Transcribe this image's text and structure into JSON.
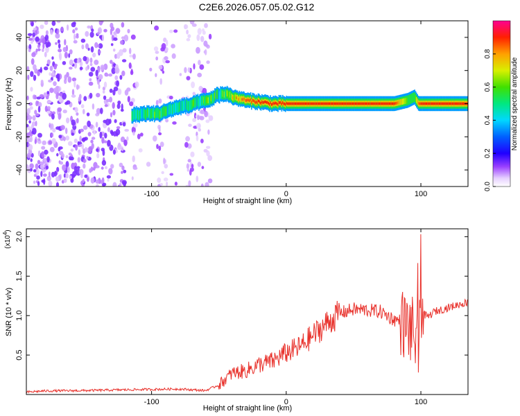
{
  "title": "C2E6.2026.057.05.02.G12",
  "colors": {
    "snr_line": "#e8302a",
    "axis": "#000000",
    "colormap": [
      "#ffffff",
      "#e0c8ff",
      "#7a00ff",
      "#0000ff",
      "#00c8ff",
      "#00e080",
      "#30e000",
      "#ffff00",
      "#ff8000",
      "#ff0000",
      "#ff0080"
    ]
  },
  "chart_data": [
    {
      "type": "heatmap",
      "xlabel": "Height of straight line (km)",
      "ylabel": "Frequency (Hz)",
      "xlim": [
        -193,
        135
      ],
      "ylim": [
        -50,
        50
      ],
      "xticks": [
        -100,
        0,
        100
      ],
      "yticks": [
        -40,
        -20,
        0,
        20,
        40
      ],
      "colorbar": {
        "label": "Normalized spectral amplitude",
        "range": [
          0,
          1
        ],
        "ticks": [
          "0.0",
          "0.2",
          "0.4",
          "0.6",
          "0.8"
        ]
      },
      "ridge": {
        "x": [
          -115,
          -105,
          -95,
          -88,
          -80,
          -72,
          -65,
          -58,
          -52,
          -45,
          -40,
          -35,
          -30,
          -20,
          -10,
          0,
          10,
          20,
          40,
          60,
          80,
          90,
          95,
          98,
          100,
          110,
          135
        ],
        "frequency": [
          -7,
          -6,
          -6,
          -4,
          -2,
          -1,
          1,
          2,
          5,
          6,
          4,
          3,
          2,
          1,
          0,
          0,
          0,
          0,
          0,
          0,
          0,
          2,
          4,
          0,
          0,
          0,
          0
        ],
        "amplitude": [
          0.45,
          0.5,
          0.55,
          0.5,
          0.45,
          0.5,
          0.5,
          0.55,
          0.5,
          0.55,
          0.7,
          0.8,
          0.85,
          0.9,
          0.9,
          0.9,
          0.9,
          0.9,
          0.9,
          0.9,
          0.9,
          0.6,
          0.55,
          0.85,
          0.9,
          0.9,
          0.9
        ]
      }
    },
    {
      "type": "line",
      "xlabel": "Height of straight line (km)",
      "ylabel": "SNR (10 * v/v)",
      "yscale_label": "(x10",
      "yscale_exponent": "4",
      "xlim": [
        -193,
        135
      ],
      "ylim": [
        0,
        21000
      ],
      "xticks": [
        -100,
        0,
        100
      ],
      "yticks": [
        {
          "value": 5000,
          "label": "0.5"
        },
        {
          "value": 10000,
          "label": "1.0"
        },
        {
          "value": 15000,
          "label": "1.5"
        },
        {
          "value": 20000,
          "label": "2.0"
        }
      ],
      "series": [
        {
          "x": [
            -193,
            -180,
            -150,
            -120,
            -100,
            -80,
            -60,
            -50,
            -45,
            -40,
            -30,
            -20,
            -10,
            0,
            10,
            20,
            30,
            40,
            50,
            60,
            70,
            80,
            85,
            90,
            95,
            98,
            100,
            105,
            110,
            120,
            130,
            135
          ],
          "y": [
            300,
            450,
            500,
            600,
            650,
            700,
            500,
            1200,
            2000,
            2700,
            3000,
            3800,
            4200,
            5300,
            6000,
            7500,
            9000,
            10300,
            10800,
            10700,
            10500,
            9500,
            9300,
            8500,
            7800,
            5500,
            10500,
            9800,
            10500,
            11000,
            11500,
            11700
          ]
        }
      ]
    }
  ]
}
